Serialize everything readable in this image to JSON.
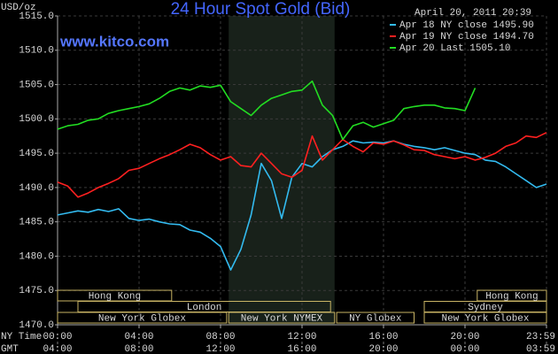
{
  "chart_data": {
    "type": "line",
    "title": "24 Hour Spot Gold (Bid)",
    "website": "www.kitco.com",
    "timestamp": "April 20, 2011 20:39",
    "y_label": "USD/oz",
    "x_label": "NY Time",
    "x2_label": "GMT",
    "xlim": [
      0,
      24
    ],
    "ylim": [
      1470,
      1515
    ],
    "grid": true,
    "yticks": [
      {
        "value": 1470,
        "label": "1470.0"
      },
      {
        "value": 1475,
        "label": "1475.0"
      },
      {
        "value": 1480,
        "label": "1480.0"
      },
      {
        "value": 1485,
        "label": "1485.0"
      },
      {
        "value": 1490,
        "label": "1490.0"
      },
      {
        "value": 1495,
        "label": "1495.0"
      },
      {
        "value": 1500,
        "label": "1500.0"
      },
      {
        "value": 1505,
        "label": "1505.0"
      },
      {
        "value": 1510,
        "label": "1510.0"
      },
      {
        "value": 1515,
        "label": "1515.0"
      }
    ],
    "xticks": [
      {
        "value": 0,
        "label": "00:00"
      },
      {
        "value": 4,
        "label": "04:00"
      },
      {
        "value": 8,
        "label": "08:00"
      },
      {
        "value": 12,
        "label": "12:00"
      },
      {
        "value": 16,
        "label": "16:00"
      },
      {
        "value": 20,
        "label": "20:00"
      },
      {
        "value": 24,
        "label": "23:59"
      }
    ],
    "x2ticks": [
      {
        "value": 0,
        "label": "04:00"
      },
      {
        "value": 4,
        "label": "08:00"
      },
      {
        "value": 8,
        "label": "12:00"
      },
      {
        "value": 12,
        "label": "16:00"
      },
      {
        "value": 16,
        "label": "20:00"
      },
      {
        "value": 20,
        "label": "00:00"
      },
      {
        "value": 24,
        "label": "03:59"
      }
    ],
    "x": [
      0,
      0.5,
      1,
      1.5,
      2,
      2.5,
      3,
      3.5,
      4,
      4.5,
      5,
      5.5,
      6,
      6.5,
      7,
      7.5,
      8,
      8.5,
      9,
      9.5,
      10,
      10.5,
      11,
      11.5,
      12,
      12.5,
      13,
      13.5,
      14,
      14.5,
      15,
      15.5,
      16,
      16.5,
      17,
      17.5,
      18,
      18.5,
      19,
      19.5,
      20,
      20.5,
      21,
      21.5,
      22,
      22.5,
      23,
      23.5,
      24
    ],
    "series": [
      {
        "name": "Apr 18 NY close 1495.90",
        "color": "#33bbf0",
        "values": [
          1486,
          1486.3,
          1486.6,
          1486.4,
          1486.8,
          1486.5,
          1486.9,
          1485.5,
          1485.2,
          1485.4,
          1485,
          1484.7,
          1484.6,
          1483.8,
          1483.5,
          1482.6,
          1481.4,
          1478,
          1481,
          1486,
          1493.5,
          1491,
          1485.5,
          1491.5,
          1493.5,
          1493,
          1494.5,
          1495.5,
          1496,
          1496.8,
          1496.5,
          1496.6,
          1496.5,
          1496.8,
          1496.3,
          1496,
          1495.8,
          1495.5,
          1495.8,
          1495.4,
          1495,
          1494.8,
          1494,
          1493.8,
          1493,
          1492,
          1491,
          1490,
          1490.5
        ]
      },
      {
        "name": "Apr 19 NY close 1494.70",
        "color": "#ff2020",
        "values": [
          1490.8,
          1490.2,
          1488.6,
          1489.2,
          1490,
          1490.6,
          1491.3,
          1492.5,
          1492.8,
          1493.5,
          1494.2,
          1494.8,
          1495.5,
          1496.3,
          1495.8,
          1494.8,
          1494,
          1494.5,
          1493.2,
          1493,
          1495,
          1493.5,
          1492,
          1491.5,
          1492.5,
          1497.5,
          1494,
          1495.5,
          1497,
          1496,
          1495.2,
          1496.5,
          1496.3,
          1496.8,
          1496.2,
          1495.5,
          1495.4,
          1494.8,
          1494.5,
          1494.2,
          1494.5,
          1494,
          1494.4,
          1495,
          1496,
          1496.5,
          1497.5,
          1497.3,
          1498
        ]
      },
      {
        "name": "Apr 20 Last 1505.10",
        "color": "#22dd22",
        "values": [
          1498.5,
          1499,
          1499.2,
          1499.8,
          1500,
          1500.8,
          1501.2,
          1501.5,
          1501.8,
          1502.2,
          1503,
          1504,
          1504.5,
          1504.2,
          1504.8,
          1504.6,
          1504.9,
          1502.5,
          1501.5,
          1500.5,
          1502,
          1503,
          1503.5,
          1504,
          1504.2,
          1505.5,
          1502,
          1500.5,
          1497,
          1499,
          1499.5,
          1498.8,
          1499.3,
          1499.8,
          1501.5,
          1501.8,
          1502,
          1502,
          1501.6,
          1501.5,
          1501.2,
          1504.5,
          null,
          null,
          null,
          null,
          null,
          null,
          null
        ]
      }
    ],
    "session_rows": [
      [
        {
          "label": "Hong Kong",
          "start": 0,
          "end": 5.6
        },
        {
          "label": "Hong Kong",
          "start": 20.6,
          "end": 24
        }
      ],
      [
        {
          "label": "London",
          "start": 1,
          "end": 13.4
        },
        {
          "label": "Sydney",
          "start": 18,
          "end": 24
        }
      ],
      [
        {
          "label": "New York Globex",
          "start": 0,
          "end": 8.3
        },
        {
          "label": "New York NYMEX",
          "start": 8.4,
          "end": 13.6,
          "shaded": true
        },
        {
          "label": "NY Globex",
          "start": 13.7,
          "end": 17.5
        },
        {
          "label": "New York Globex",
          "start": 18,
          "end": 24
        }
      ]
    ]
  }
}
